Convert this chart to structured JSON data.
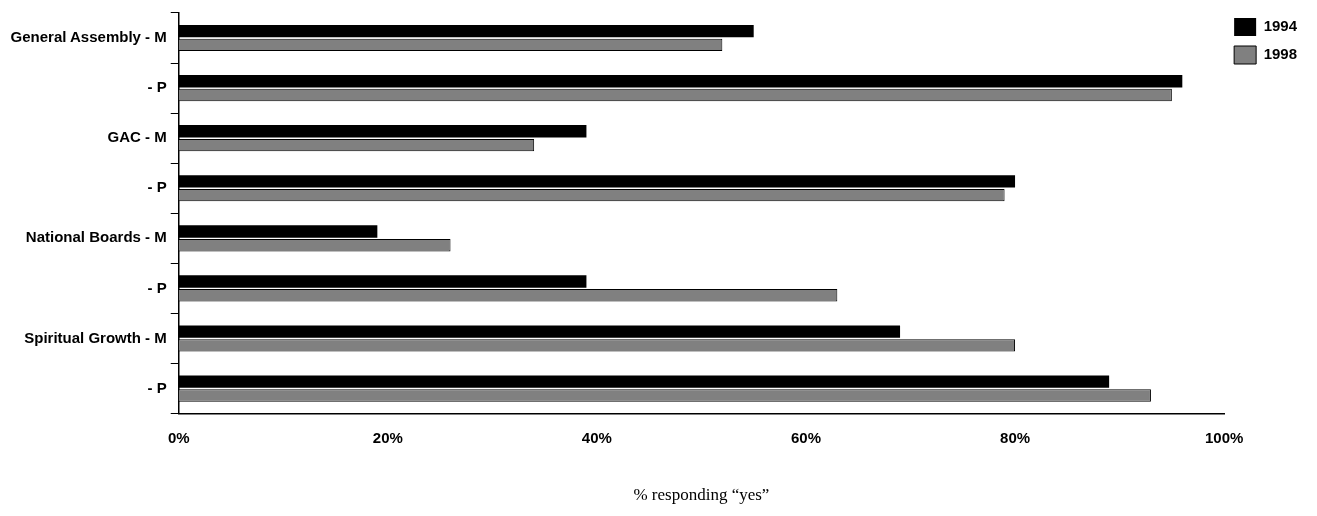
{
  "chart_data": {
    "type": "bar",
    "orientation": "horizontal",
    "xlabel": "% responding “yes”",
    "categories": [
      "General Assembly - M",
      "- P",
      "GAC - M",
      "- P",
      "National Boards - M",
      "- P",
      "Spiritual Growth - M",
      "- P"
    ],
    "series": [
      {
        "name": "1994",
        "color": "#000000",
        "values": [
          55,
          96,
          39,
          80,
          19,
          39,
          69,
          89
        ]
      },
      {
        "name": "1998",
        "color": "#808080",
        "values": [
          52,
          95,
          34,
          79,
          26,
          63,
          80,
          93
        ]
      }
    ],
    "xlim": [
      0,
      100
    ],
    "xticks": [
      {
        "value": 0,
        "label": "0%"
      },
      {
        "value": 20,
        "label": "20%"
      },
      {
        "value": 40,
        "label": "40%"
      },
      {
        "value": 60,
        "label": "60%"
      },
      {
        "value": 80,
        "label": "80%"
      },
      {
        "value": 100,
        "label": "100%"
      }
    ],
    "grid": false,
    "legend": "top right"
  }
}
